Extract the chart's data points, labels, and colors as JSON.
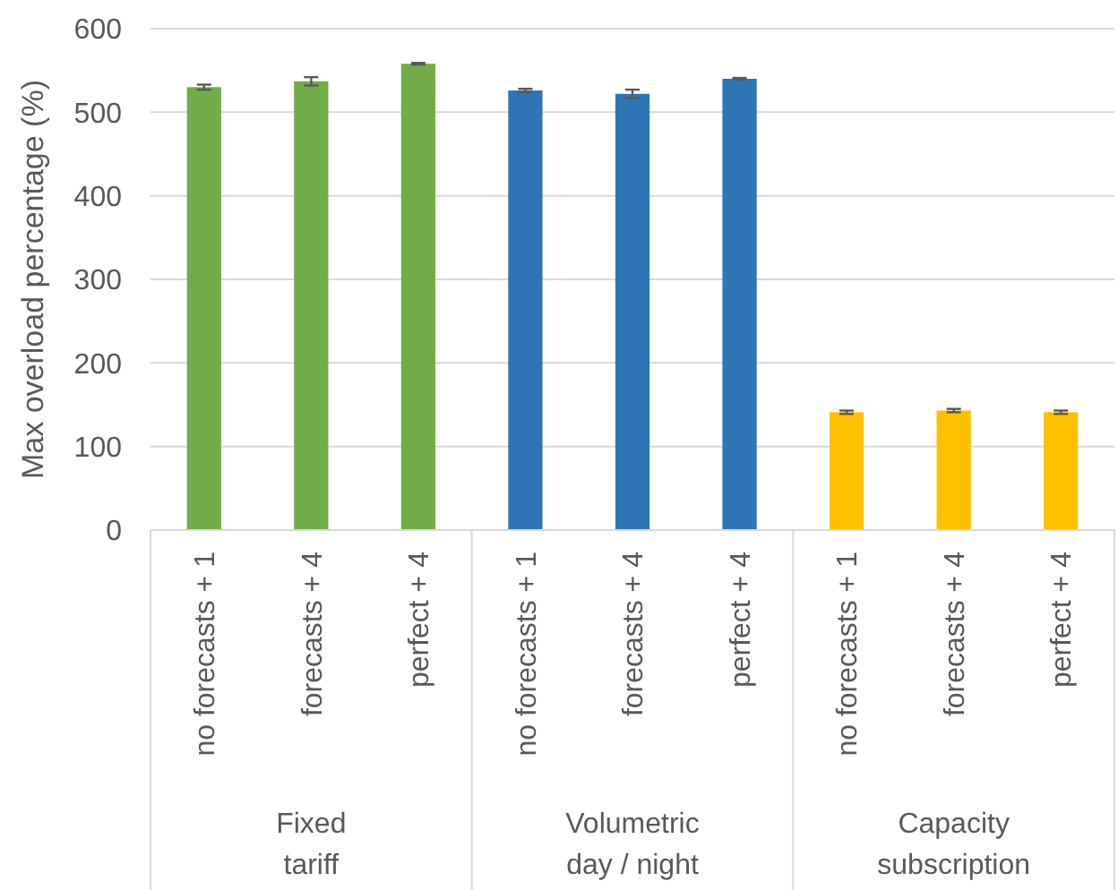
{
  "chart_data": {
    "type": "bar",
    "ylabel": "Max overload percentage (%)",
    "categories": [
      "no forecasts + 1",
      "forecasts + 4",
      "perfect + 4",
      "no forecasts + 1",
      "forecasts + 4",
      "perfect + 4",
      "no forecasts + 1",
      "forecasts + 4",
      "perfect + 4"
    ],
    "values": [
      530,
      537,
      558,
      526,
      522,
      540,
      141,
      143,
      141
    ],
    "errors": [
      3,
      5,
      1,
      2,
      5,
      1,
      2,
      2,
      2
    ],
    "colors": [
      "#70ad47",
      "#70ad47",
      "#70ad47",
      "#2e75b6",
      "#2e75b6",
      "#2e75b6",
      "#ffc000",
      "#ffc000",
      "#ffc000"
    ],
    "annotations": [
      "Fixed\ntariff",
      "Volumetric\nday / night",
      "Capacity\nsubscription"
    ],
    "ylim": [
      0,
      600
    ],
    "yticks": [
      0,
      100,
      200,
      300,
      400,
      500,
      600
    ],
    "grid": "y"
  }
}
